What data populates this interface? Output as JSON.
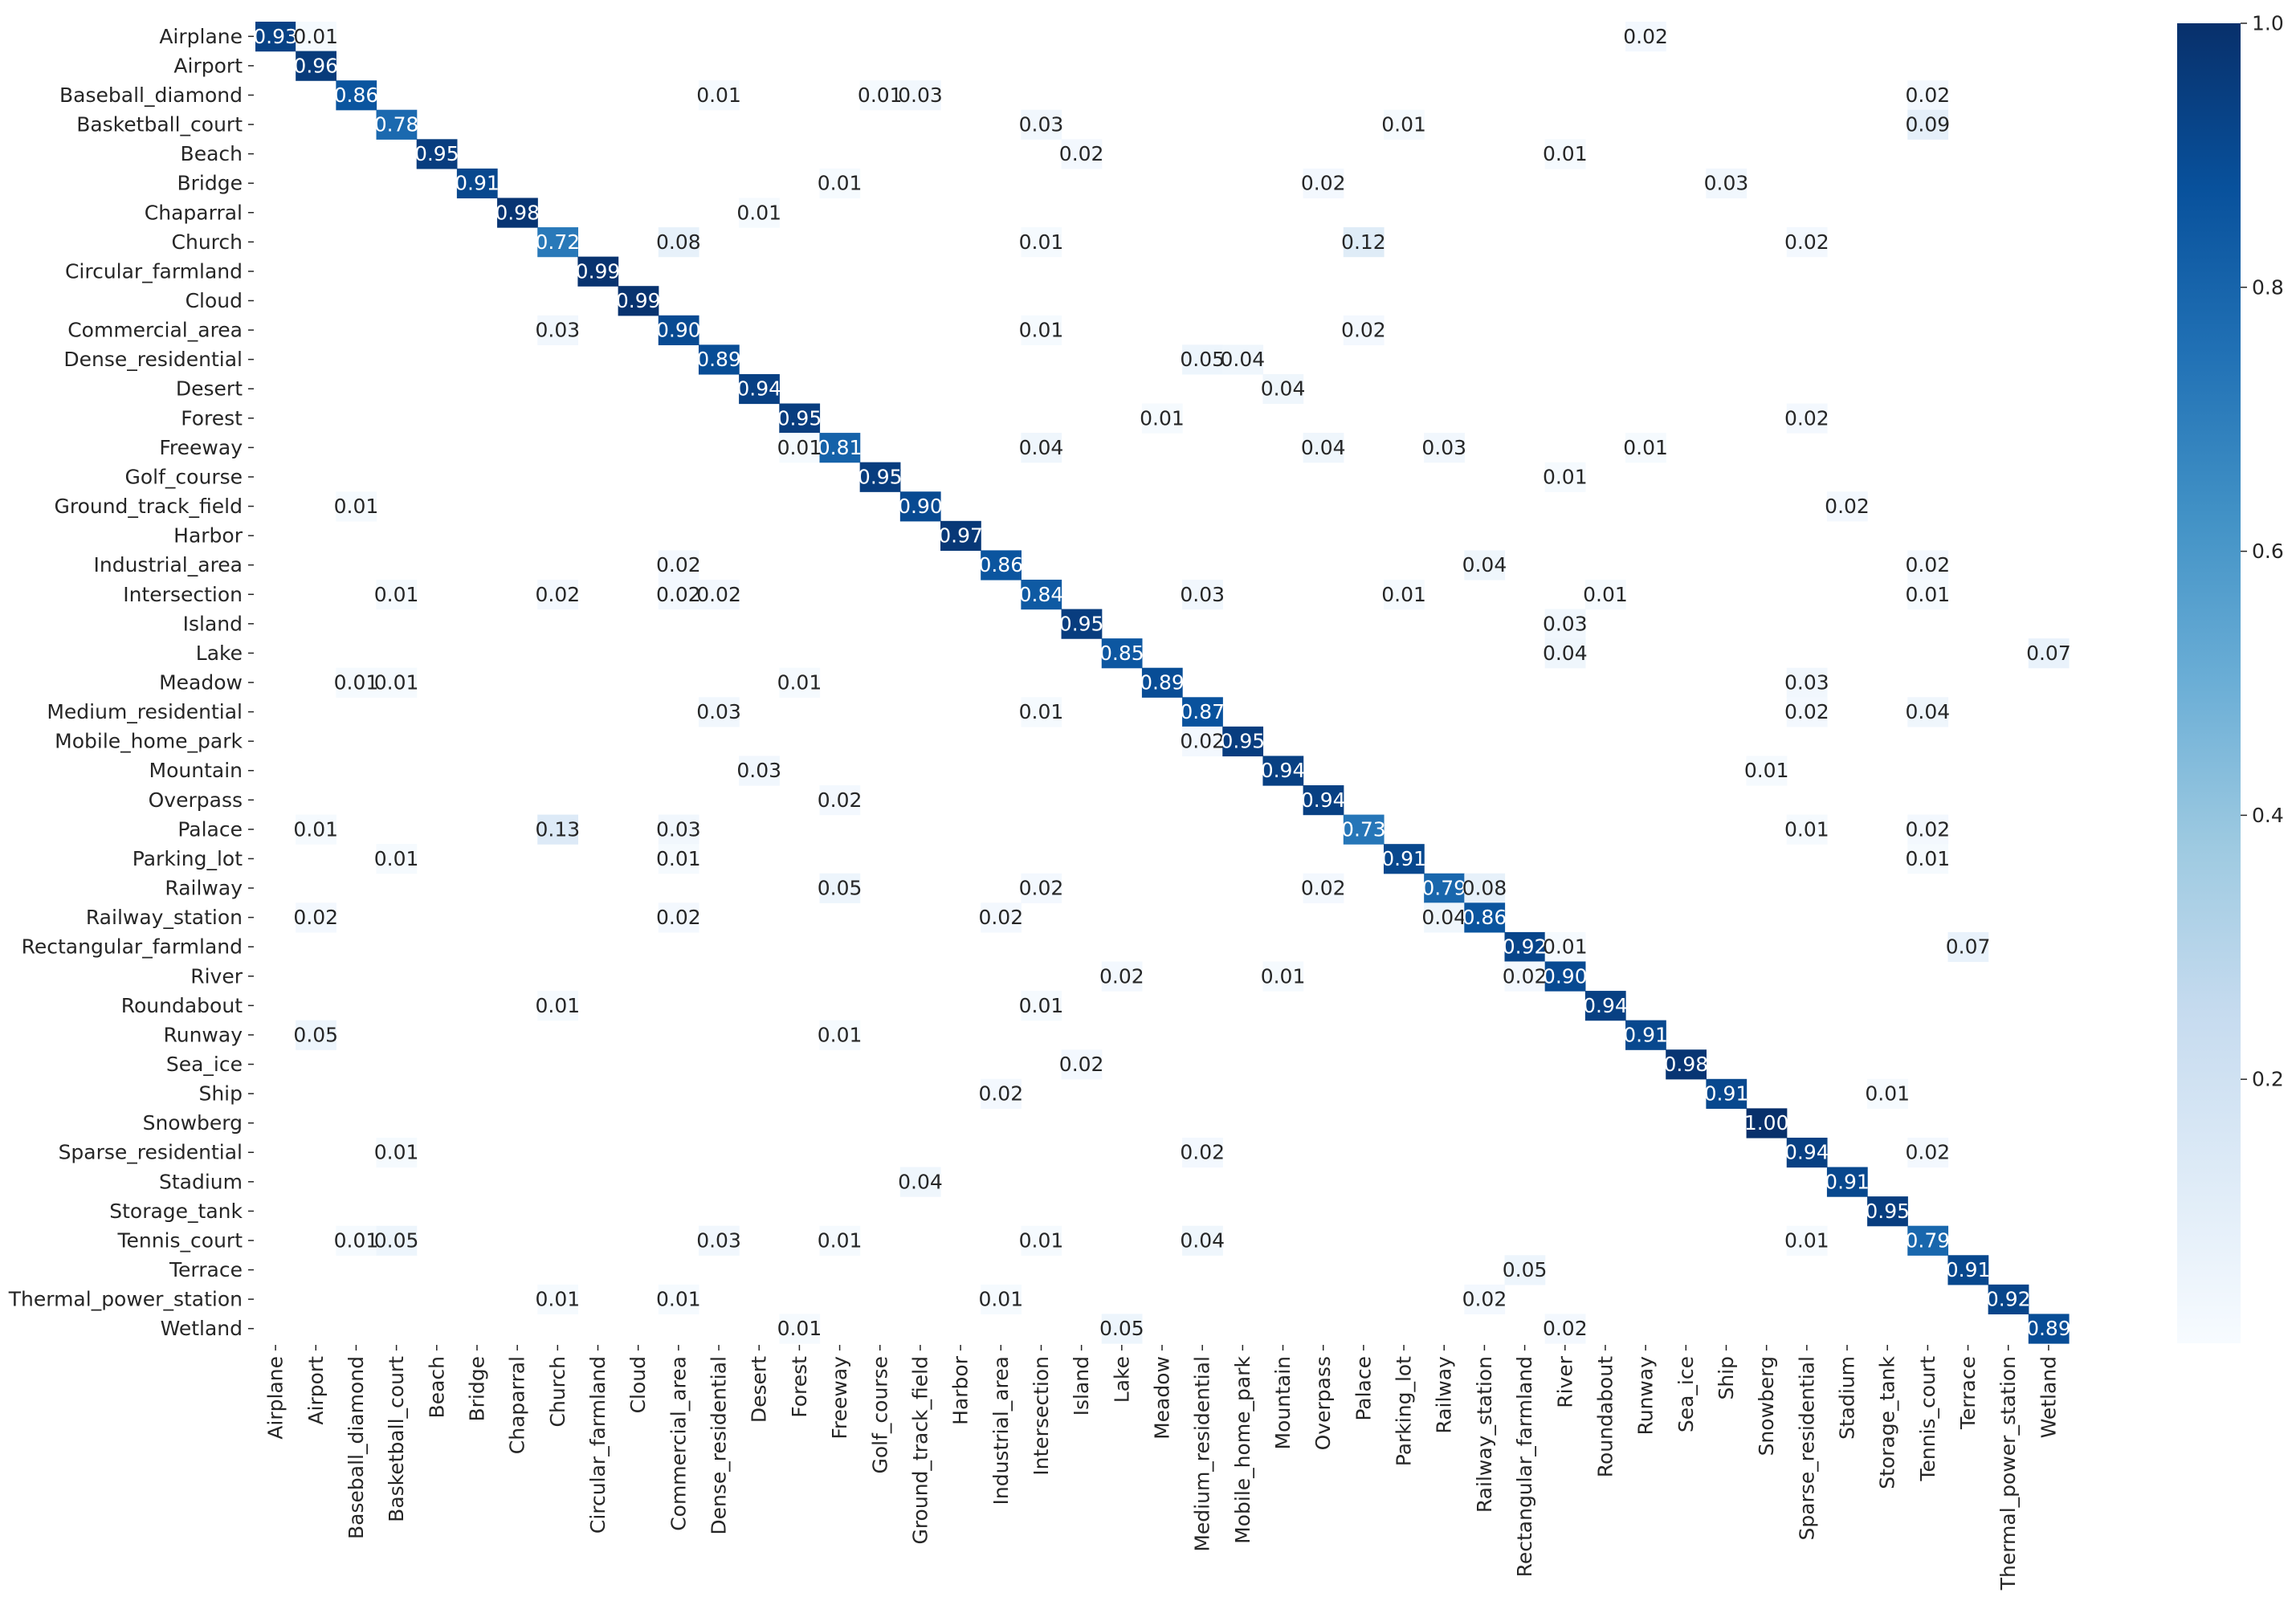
{
  "chart_data": {
    "type": "heatmap",
    "labels": [
      "Airplane",
      "Airport",
      "Baseball_diamond",
      "Basketball_court",
      "Beach",
      "Bridge",
      "Chaparral",
      "Church",
      "Circular_farmland",
      "Cloud",
      "Commercial_area",
      "Dense_residential",
      "Desert",
      "Forest",
      "Freeway",
      "Golf_course",
      "Ground_track_field",
      "Harbor",
      "Industrial_area",
      "Intersection",
      "Island",
      "Lake",
      "Meadow",
      "Medium_residential",
      "Mobile_home_park",
      "Mountain",
      "Overpass",
      "Palace",
      "Parking_lot",
      "Railway",
      "Railway_station",
      "Rectangular_farmland",
      "River",
      "Roundabout",
      "Runway",
      "Sea_ice",
      "Ship",
      "Snowberg",
      "Sparse_residential",
      "Stadium",
      "Storage_tank",
      "Tennis_court",
      "Terrace",
      "Thermal_power_station",
      "Wetland"
    ],
    "cells": [
      [
        0,
        0,
        0.93
      ],
      [
        0,
        1,
        0.01
      ],
      [
        0,
        34,
        0.02
      ],
      [
        1,
        1,
        0.96
      ],
      [
        2,
        2,
        0.86
      ],
      [
        2,
        11,
        0.01
      ],
      [
        2,
        15,
        0.01
      ],
      [
        2,
        16,
        0.03
      ],
      [
        2,
        41,
        0.02
      ],
      [
        3,
        3,
        0.78
      ],
      [
        3,
        19,
        0.03
      ],
      [
        3,
        28,
        0.01
      ],
      [
        3,
        41,
        0.09
      ],
      [
        4,
        4,
        0.95
      ],
      [
        4,
        20,
        0.02
      ],
      [
        4,
        32,
        0.01
      ],
      [
        5,
        5,
        0.91
      ],
      [
        5,
        14,
        0.01
      ],
      [
        5,
        26,
        0.02
      ],
      [
        5,
        36,
        0.03
      ],
      [
        6,
        6,
        0.98
      ],
      [
        6,
        12,
        0.01
      ],
      [
        7,
        7,
        0.72
      ],
      [
        7,
        10,
        0.08
      ],
      [
        7,
        19,
        0.01
      ],
      [
        7,
        27,
        0.12
      ],
      [
        7,
        38,
        0.02
      ],
      [
        8,
        8,
        0.99
      ],
      [
        9,
        9,
        0.99
      ],
      [
        10,
        7,
        0.03
      ],
      [
        10,
        10,
        0.9
      ],
      [
        10,
        19,
        0.01
      ],
      [
        10,
        27,
        0.02
      ],
      [
        11,
        11,
        0.89
      ],
      [
        11,
        23,
        0.05
      ],
      [
        11,
        24,
        0.04
      ],
      [
        12,
        12,
        0.94
      ],
      [
        12,
        25,
        0.04
      ],
      [
        13,
        13,
        0.95
      ],
      [
        13,
        22,
        0.01
      ],
      [
        13,
        38,
        0.02
      ],
      [
        14,
        13,
        0.01
      ],
      [
        14,
        14,
        0.81
      ],
      [
        14,
        19,
        0.04
      ],
      [
        14,
        26,
        0.04
      ],
      [
        14,
        29,
        0.03
      ],
      [
        14,
        34,
        0.01
      ],
      [
        15,
        15,
        0.95
      ],
      [
        15,
        32,
        0.01
      ],
      [
        16,
        2,
        0.01
      ],
      [
        16,
        16,
        0.9
      ],
      [
        16,
        39,
        0.02
      ],
      [
        17,
        17,
        0.97
      ],
      [
        18,
        10,
        0.02
      ],
      [
        18,
        18,
        0.86
      ],
      [
        18,
        30,
        0.04
      ],
      [
        18,
        41,
        0.02
      ],
      [
        19,
        3,
        0.01
      ],
      [
        19,
        7,
        0.02
      ],
      [
        19,
        10,
        0.02
      ],
      [
        19,
        11,
        0.02
      ],
      [
        19,
        19,
        0.84
      ],
      [
        19,
        23,
        0.03
      ],
      [
        19,
        28,
        0.01
      ],
      [
        19,
        33,
        0.01
      ],
      [
        19,
        41,
        0.01
      ],
      [
        20,
        20,
        0.95
      ],
      [
        20,
        32,
        0.03
      ],
      [
        21,
        21,
        0.85
      ],
      [
        21,
        32,
        0.04
      ],
      [
        21,
        44,
        0.07
      ],
      [
        22,
        2,
        0.01
      ],
      [
        22,
        3,
        0.01
      ],
      [
        22,
        13,
        0.01
      ],
      [
        22,
        22,
        0.89
      ],
      [
        22,
        38,
        0.03
      ],
      [
        23,
        11,
        0.03
      ],
      [
        23,
        19,
        0.01
      ],
      [
        23,
        23,
        0.87
      ],
      [
        23,
        38,
        0.02
      ],
      [
        23,
        41,
        0.04
      ],
      [
        24,
        23,
        0.02
      ],
      [
        24,
        24,
        0.95
      ],
      [
        25,
        12,
        0.03
      ],
      [
        25,
        25,
        0.94
      ],
      [
        25,
        37,
        0.01
      ],
      [
        26,
        14,
        0.02
      ],
      [
        26,
        26,
        0.94
      ],
      [
        27,
        1,
        0.01
      ],
      [
        27,
        7,
        0.13
      ],
      [
        27,
        10,
        0.03
      ],
      [
        27,
        27,
        0.73
      ],
      [
        27,
        38,
        0.01
      ],
      [
        27,
        41,
        0.02
      ],
      [
        28,
        3,
        0.01
      ],
      [
        28,
        10,
        0.01
      ],
      [
        28,
        28,
        0.91
      ],
      [
        28,
        41,
        0.01
      ],
      [
        29,
        14,
        0.05
      ],
      [
        29,
        19,
        0.02
      ],
      [
        29,
        26,
        0.02
      ],
      [
        29,
        29,
        0.79
      ],
      [
        29,
        30,
        0.08
      ],
      [
        30,
        1,
        0.02
      ],
      [
        30,
        10,
        0.02
      ],
      [
        30,
        18,
        0.02
      ],
      [
        30,
        29,
        0.04
      ],
      [
        30,
        30,
        0.86
      ],
      [
        31,
        31,
        0.92
      ],
      [
        31,
        32,
        0.01
      ],
      [
        31,
        42,
        0.07
      ],
      [
        32,
        21,
        0.02
      ],
      [
        32,
        25,
        0.01
      ],
      [
        32,
        31,
        0.02
      ],
      [
        32,
        32,
        0.9
      ],
      [
        33,
        7,
        0.01
      ],
      [
        33,
        19,
        0.01
      ],
      [
        33,
        33,
        0.94
      ],
      [
        34,
        1,
        0.05
      ],
      [
        34,
        14,
        0.01
      ],
      [
        34,
        34,
        0.91
      ],
      [
        35,
        20,
        0.02
      ],
      [
        35,
        35,
        0.98
      ],
      [
        36,
        18,
        0.02
      ],
      [
        36,
        36,
        0.91
      ],
      [
        36,
        40,
        0.01
      ],
      [
        37,
        37,
        1.0
      ],
      [
        38,
        3,
        0.01
      ],
      [
        38,
        23,
        0.02
      ],
      [
        38,
        38,
        0.94
      ],
      [
        38,
        41,
        0.02
      ],
      [
        39,
        16,
        0.04
      ],
      [
        39,
        39,
        0.91
      ],
      [
        40,
        40,
        0.95
      ],
      [
        41,
        2,
        0.01
      ],
      [
        41,
        3,
        0.05
      ],
      [
        41,
        11,
        0.03
      ],
      [
        41,
        14,
        0.01
      ],
      [
        41,
        19,
        0.01
      ],
      [
        41,
        23,
        0.04
      ],
      [
        41,
        38,
        0.01
      ],
      [
        41,
        41,
        0.79
      ],
      [
        42,
        31,
        0.05
      ],
      [
        42,
        42,
        0.91
      ],
      [
        43,
        7,
        0.01
      ],
      [
        43,
        10,
        0.01
      ],
      [
        43,
        18,
        0.01
      ],
      [
        43,
        30,
        0.02
      ],
      [
        43,
        43,
        0.92
      ],
      [
        44,
        13,
        0.01
      ],
      [
        44,
        21,
        0.05
      ],
      [
        44,
        32,
        0.02
      ],
      [
        44,
        44,
        0.89
      ]
    ],
    "colorbar": {
      "range": [
        0,
        1.0
      ],
      "ticks": [
        0.2,
        0.4,
        0.6,
        0.8,
        1.0
      ],
      "tick_labels": [
        "0.2",
        "0.4",
        "0.6",
        "0.8",
        "1.0"
      ],
      "colormap": "Blues"
    },
    "annotation_format": "0.00",
    "legend_position": "right"
  }
}
